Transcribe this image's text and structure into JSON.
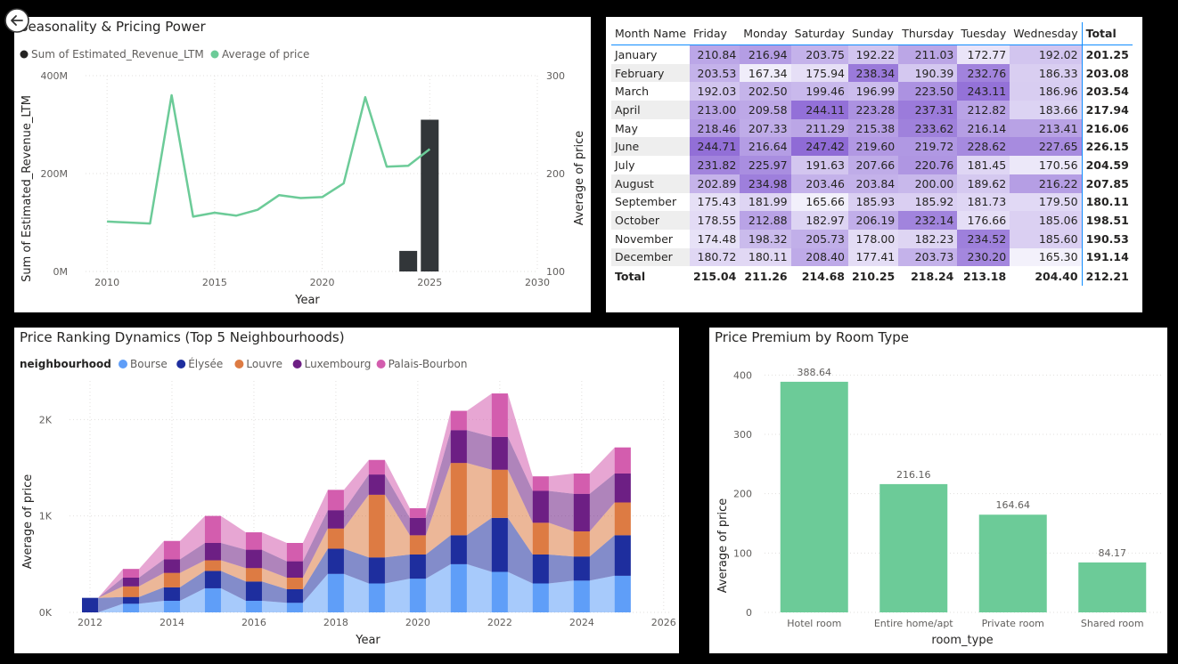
{
  "panels": {
    "seasonality": {
      "title": "Seasonality & Pricing Power",
      "legend": [
        {
          "label": "Sum of Estimated_Revenue_LTM",
          "color": "#252423"
        },
        {
          "label": "Average of price",
          "color": "#6ccb98"
        }
      ],
      "xlabel": "Year",
      "ylabel_left": "Sum of Estimated_Revenue_LTM",
      "ylabel_right": "Average of price"
    },
    "ranking": {
      "title": "Price Ranking Dynamics (Top 5 Neighbourhoods)",
      "legend_title": "neighbourhood",
      "xlabel": "Year",
      "ylabel": "Average of price"
    },
    "premium": {
      "title": "Price Premium by Room Type",
      "xlabel": "room_type",
      "ylabel": "Average of price"
    },
    "matrix": {
      "corner": "Month Name",
      "total_label": "Total"
    }
  },
  "chart_data": [
    {
      "type": "combo-bar-line",
      "title": "Seasonality & Pricing Power",
      "xlabel": "Year",
      "xlim": [
        2009,
        2030
      ],
      "xticks": [
        2010,
        2015,
        2020,
        2025,
        2030
      ],
      "y_left": {
        "label": "Sum of Estimated_Revenue_LTM",
        "ylim": [
          0,
          400000000
        ],
        "ticks": [
          "0M",
          "200M",
          "400M"
        ],
        "tick_values": [
          0,
          200000000,
          400000000
        ]
      },
      "y_right": {
        "label": "Average of price",
        "ylim": [
          100,
          300
        ],
        "ticks": [
          "100",
          "200",
          "300"
        ],
        "tick_values": [
          100,
          200,
          300
        ]
      },
      "bars": {
        "name": "Sum of Estimated_Revenue_LTM",
        "color": "#323639",
        "x": [
          2024,
          2025
        ],
        "values": [
          42000000,
          310000000
        ]
      },
      "line": {
        "name": "Average of price",
        "color": "#6ccb98",
        "x": [
          2010,
          2011,
          2012,
          2013,
          2014,
          2015,
          2016,
          2017,
          2018,
          2019,
          2020,
          2021,
          2022,
          2023,
          2024,
          2025
        ],
        "values": [
          151,
          150,
          149,
          280,
          156,
          160,
          157,
          163,
          178,
          175,
          176,
          190,
          278,
          207,
          208,
          225
        ]
      }
    },
    {
      "type": "table",
      "columns": [
        "Month Name",
        "Friday",
        "Monday",
        "Saturday",
        "Sunday",
        "Thursday",
        "Tuesday",
        "Wednesday",
        "Total"
      ],
      "rows": [
        [
          "January",
          210.84,
          216.94,
          203.75,
          192.22,
          211.03,
          172.77,
          192.02,
          201.25
        ],
        [
          "February",
          203.53,
          167.34,
          175.94,
          238.34,
          190.39,
          232.76,
          186.33,
          203.08
        ],
        [
          "March",
          192.03,
          202.5,
          199.46,
          196.99,
          223.5,
          243.11,
          186.96,
          203.54
        ],
        [
          "April",
          213.0,
          209.58,
          244.11,
          223.28,
          237.31,
          212.82,
          183.66,
          217.94
        ],
        [
          "May",
          218.46,
          207.33,
          211.29,
          215.38,
          233.62,
          216.14,
          213.41,
          216.06
        ],
        [
          "June",
          244.71,
          216.64,
          247.42,
          219.6,
          219.72,
          228.62,
          227.65,
          226.15
        ],
        [
          "July",
          231.82,
          225.97,
          191.63,
          207.66,
          220.76,
          181.45,
          170.56,
          204.59
        ],
        [
          "August",
          202.89,
          234.98,
          203.46,
          203.84,
          200.0,
          189.62,
          216.22,
          207.85
        ],
        [
          "September",
          175.43,
          181.99,
          165.66,
          185.93,
          185.92,
          181.73,
          179.5,
          180.11
        ],
        [
          "October",
          178.55,
          212.88,
          182.97,
          206.19,
          232.14,
          176.66,
          185.06,
          198.51
        ],
        [
          "November",
          174.48,
          198.32,
          205.73,
          178.0,
          182.23,
          234.52,
          185.6,
          190.53
        ],
        [
          "December",
          180.72,
          180.11,
          208.4,
          177.41,
          203.73,
          230.2,
          165.3,
          191.14
        ]
      ],
      "totals": [
        "Total",
        215.04,
        211.26,
        214.68,
        210.25,
        218.24,
        213.18,
        204.4,
        212.21
      ],
      "color_scale": {
        "low": "#f3f1fb",
        "high": "#8e6ad6",
        "min": 165,
        "max": 248
      }
    },
    {
      "type": "area",
      "title": "Price Ranking Dynamics (Top 5 Neighbourhoods)",
      "xlabel": "Year",
      "ylabel": "Average of price",
      "xlim": [
        2011.5,
        2026.2
      ],
      "xticks": [
        2012,
        2014,
        2016,
        2018,
        2020,
        2022,
        2024,
        2026
      ],
      "ylim": [
        0,
        2400
      ],
      "yticks": [
        0,
        1000,
        2000
      ],
      "ytick_labels": [
        "0K",
        "1K",
        "2K"
      ],
      "legend_title": "neighbourhood",
      "years": [
        2012,
        2013,
        2014,
        2015,
        2016,
        2017,
        2018,
        2019,
        2020,
        2021,
        2022,
        2023,
        2024,
        2025
      ],
      "series": [
        {
          "name": "Bourse",
          "color": "#5f9ef8",
          "values": [
            0,
            90,
            120,
            250,
            120,
            100,
            400,
            300,
            350,
            500,
            420,
            300,
            330,
            380
          ]
        },
        {
          "name": "Élysée",
          "color": "#1e2e9e",
          "values": [
            150,
            70,
            140,
            180,
            200,
            140,
            260,
            270,
            250,
            300,
            560,
            300,
            250,
            420
          ]
        },
        {
          "name": "Louvre",
          "color": "#dd7b43",
          "values": [
            0,
            110,
            150,
            110,
            140,
            120,
            210,
            650,
            200,
            750,
            500,
            330,
            260,
            340
          ]
        },
        {
          "name": "Luxembourg",
          "color": "#6d1f84",
          "values": [
            0,
            90,
            140,
            180,
            190,
            170,
            190,
            210,
            180,
            340,
            340,
            330,
            390,
            300
          ]
        },
        {
          "name": "Palais-Bourbon",
          "color": "#d35dae",
          "values": [
            0,
            90,
            190,
            280,
            180,
            190,
            210,
            150,
            100,
            200,
            450,
            150,
            210,
            270
          ]
        }
      ]
    },
    {
      "type": "bar",
      "title": "Price Premium by Room Type",
      "xlabel": "room_type",
      "ylabel": "Average of price",
      "categories": [
        "Hotel room",
        "Entire home/apt",
        "Private room",
        "Shared room"
      ],
      "values": [
        388.64,
        216.16,
        164.64,
        84.17
      ],
      "labels": [
        "388.64",
        "216.16",
        "164.64",
        "84.17"
      ],
      "ylim": [
        0,
        420
      ],
      "yticks": [
        0,
        100,
        200,
        300,
        400
      ],
      "color": "#6ccb98"
    }
  ]
}
